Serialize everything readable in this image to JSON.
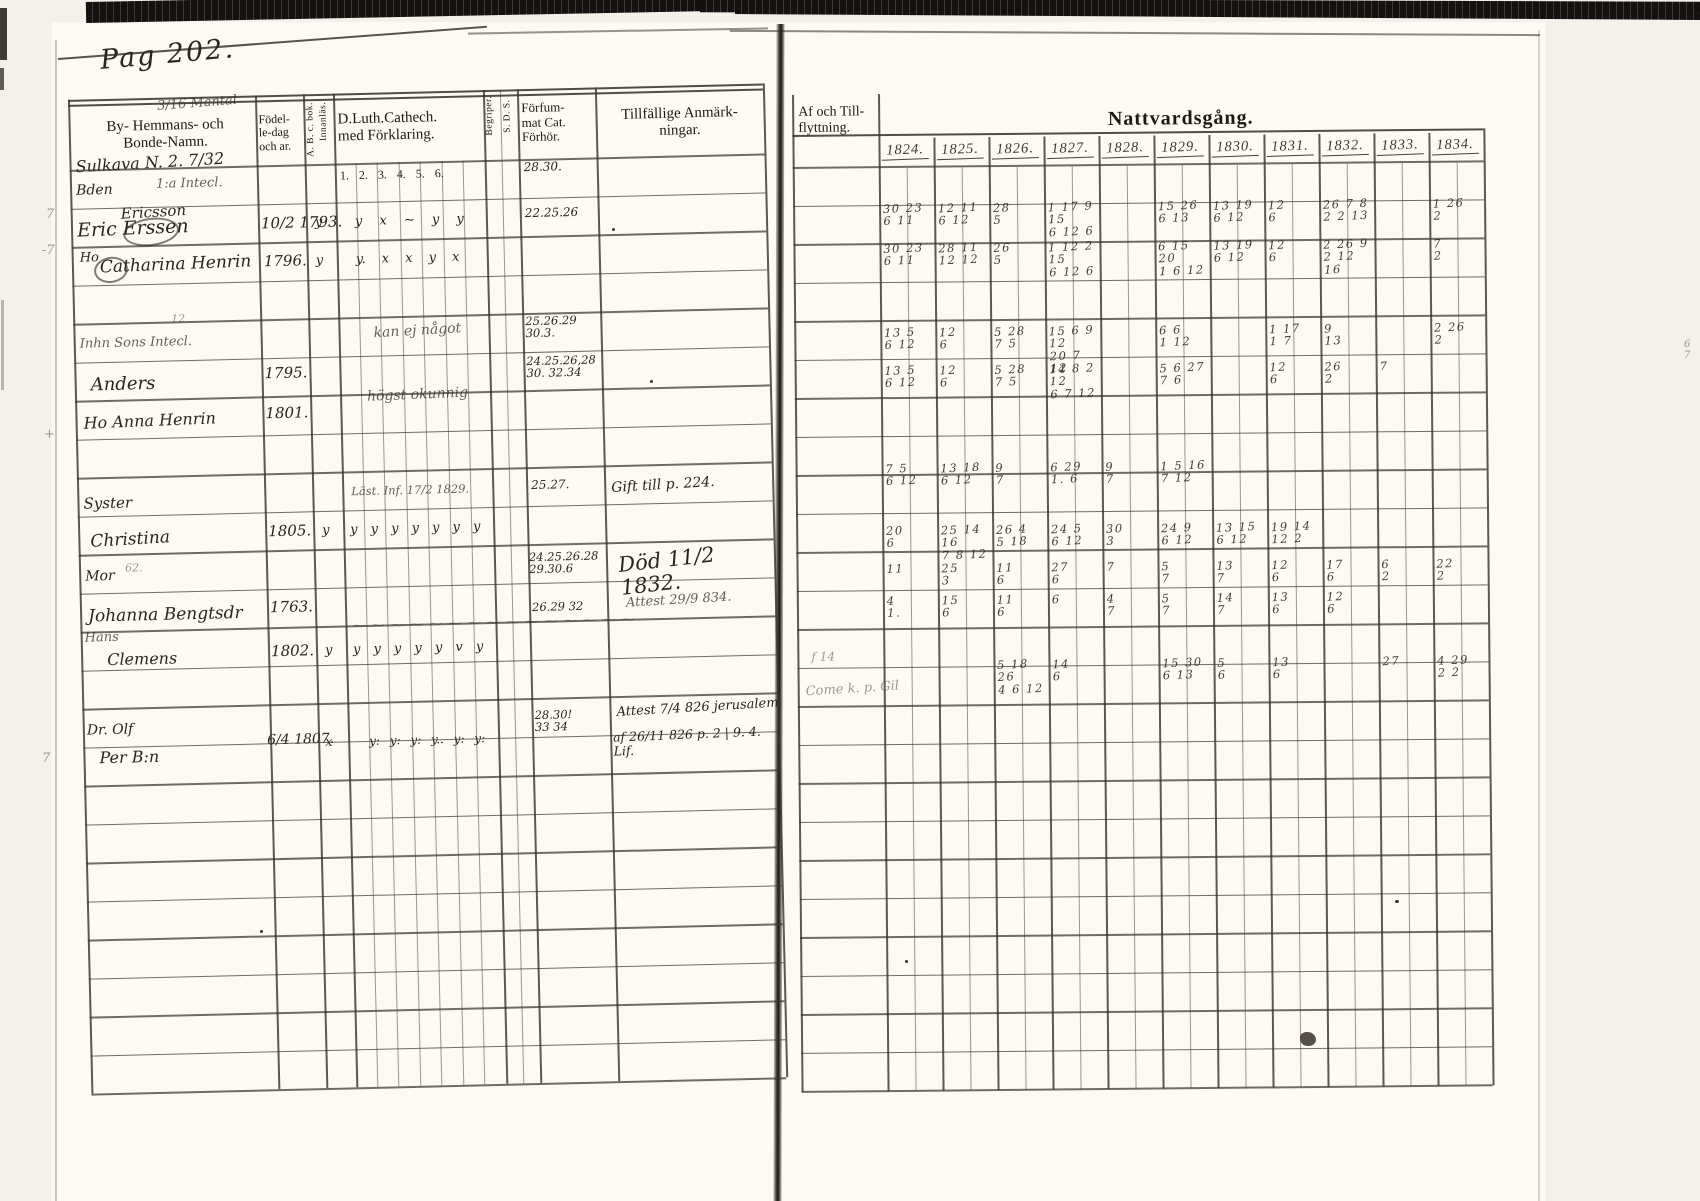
{
  "page_label": "Pag 202.",
  "left_page": {
    "mantal_note": "3/16 Mantal",
    "farm_line": "Sulkava N. 2.  7/32",
    "headers": {
      "names": "By- Hemmans- och\nBonde-Namn.",
      "birth": "Födel-\nle-dag\noch ar.",
      "abc_book": "A. B. c. bok.",
      "abc_read": "Innanläs.",
      "catechism": "D.Luth.Cathech.\nmed Förklaring.",
      "begriper": "Begriper.",
      "sds": "S. D. S.",
      "missed": "Förfum-\nmat Cat.\nFörhör.",
      "notes": "Tillfällige Anmärk-\nningar."
    },
    "cat_numbers": "1.  2.  3.  4.  5.  6.",
    "names": {
      "row1_role": "Bden",
      "row1_note": "1:a Intecl.",
      "row1_surname": "Ericsson",
      "row1_name": "Eric Erssen",
      "row2_role": "Ho",
      "row2_name": "Catharina Henrin",
      "row3_heading": "Inhn      Sons Intecl.",
      "row3_super": "12",
      "row3_name": "Anders",
      "row4_name": "Ho  Anna Henrin",
      "row5_label": "Syster",
      "row5_name": "Christina",
      "row6_label": "Mor",
      "row6_age": "62.",
      "row6_name": "Johanna Bengtsdr",
      "row7_label": "Hans",
      "row7_name": "Clemens",
      "row8_label": "Dr. Olf",
      "row8_name": "Per B:n"
    },
    "births": {
      "b1": "10/2 1793.",
      "b2": "1796.",
      "b3": "1795.",
      "b4": "1801.",
      "b5": "1805.",
      "b6": "1763.",
      "b7": "1802.",
      "b8": "6/4 1807."
    },
    "abc_marks": {
      "m1": "y",
      "m2": "y",
      "m3": "y",
      "m4": "y",
      "m5": "x"
    },
    "cat_marks": {
      "r1": "y x ~ y y",
      "r2": "y. x x y x",
      "r3": "kan ej något",
      "r4": "högst okunnig",
      "r5": "Läst. Inf. 17/2 1829.",
      "r6": "y y y y y y y",
      "r7": "y y y y y v y",
      "r8": "y: y: y: y.. y: y:",
      "scribble": "~~~~~~~~~~~~~~~"
    },
    "missed_marks": {
      "f1": "28.30.",
      "f2": "22.25.26",
      "f3": "25.26.29\n30.3.",
      "f4": "24.25.26,28\n30. 32.34",
      "f5": "25.27.",
      "f6": "24.25.26.28\n29.30.6",
      "f7": "26.29  32",
      "f8": "28.30!\n33 34"
    },
    "notes_marks": {
      "a1": "Gift till p. 224.",
      "a2": "Död 11/2 1832.",
      "a3": "Attest 29/9 834.",
      "a4": "Attest 7/4 826 jerusalem",
      "a5": "af 26/11 826 p. 2 | 9. 4. Lif."
    },
    "margin_marks": [
      "7",
      "-7",
      "+",
      "7"
    ]
  },
  "right_page": {
    "headers": {
      "moving": "Af och Till-\nflyttning.",
      "communion": "Nattvardsgång."
    },
    "years": [
      "1824.",
      "1825.",
      "1826.",
      "1827.",
      "1828.",
      "1829.",
      "1830.",
      "1831.",
      "1832.",
      "1833.",
      "1834."
    ],
    "moving_notes": {
      "n1": "f 14",
      "n2": "Come k. p. Gil"
    },
    "edge_mark": "6\n7",
    "communion_rows": [
      {
        "row": "r1",
        "cells": {
          "1824": "30 23\n6 11",
          "1825": "12 11\n6 12",
          "1826": "28\n5",
          "1827": "1 17 9 15\n6 12 6",
          "1829": "15 26\n6 13",
          "1830": "13 19\n6 12",
          "1831": "12\n6",
          "1832": "26 7 8\n2 2 13",
          "1834": "1 26\n2"
        }
      },
      {
        "row": "r2",
        "cells": {
          "1824": "30 23\n6 11",
          "1825": "28 11\n12 12",
          "1826": "26\n5",
          "1827": "1 12 2 15\n6 12 6",
          "1829": "6 15 20\n1 6 12",
          "1830": "13 19\n6 12",
          "1831": "12\n6",
          "1832": "2 26 9\n2 12 16",
          "1834": "7\n2"
        }
      },
      {
        "row": "r3",
        "cells": {
          "1824": "13 5\n6 12",
          "1825": "12\n6",
          "1826": "5 28\n7 5",
          "1827": "15 6 9 12\n20 7 12",
          "1829": "6 6\n1 12",
          "1831": "1 17\n1 7",
          "1832": "9\n13",
          "1834": "2 26\n2"
        }
      },
      {
        "row": "r4",
        "cells": {
          "1824": "13 5\n6 12",
          "1825": "12\n6",
          "1826": "5 28\n7 5",
          "1827": "14 8 2 12\n6 7 12",
          "1829": "5 6 27\n7 6",
          "1831": "12\n6",
          "1832": "26\n2",
          "1833": "7"
        }
      },
      {
        "row": "r5",
        "cells": {
          "1824": "7 5\n6 12",
          "1825": "13 18\n6 12",
          "1826": "9\n7",
          "1827": "6 29\n1. 6",
          "1828": "9\n7",
          "1829": "1 5 16\n7 12"
        }
      },
      {
        "row": "r6",
        "cells": {
          "1824": "20\n6",
          "1825": "25 14 16\n7 8 12",
          "1826": "26 4\n5 18",
          "1827": "24 5\n6 12",
          "1828": "30\n3",
          "1829": "24 9\n6 12",
          "1830": "13 15\n6 12",
          "1831": "19 14\n12 2"
        }
      },
      {
        "row": "r7",
        "cells": {
          "1824": "11",
          "1825": "25\n3",
          "1826": "11\n6",
          "1827": "27\n6",
          "1828": "7",
          "1829": "5\n7",
          "1830": "13\n7",
          "1831": "12\n6",
          "1832": "17\n6",
          "1833": "6\n2",
          "1834": "22\n2"
        }
      },
      {
        "row": "r8",
        "cells": {
          "1824": "4\n1.",
          "1825": "15\n6",
          "1826": "11\n6",
          "1827": "6",
          "1828": "4\n7",
          "1829": "5\n7",
          "1830": "14\n7",
          "1831": "13\n6",
          "1832": "12\n6"
        }
      },
      {
        "row": "r9",
        "cells": {
          "1826": "5 18 26\n4 6 12",
          "1827": "14\n6",
          "1829": "15 30\n6 13",
          "1830": "5\n6",
          "1831": "13\n6",
          "1833": "27",
          "1834": "4 29\n2 2"
        }
      }
    ]
  }
}
